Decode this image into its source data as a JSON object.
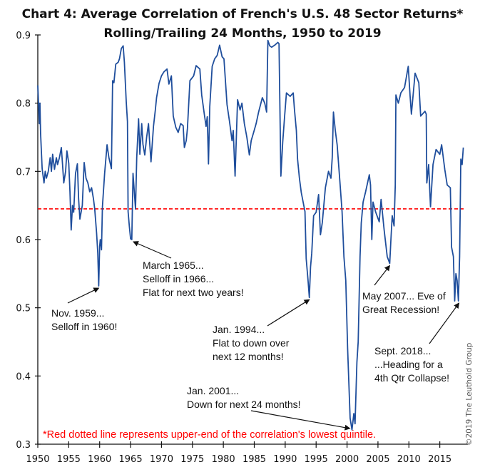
{
  "chart_data": {
    "type": "line",
    "title": "Chart 4: Average Correlation of French's U.S. 48 Sector Returns*",
    "subtitle": "Rolling/Trailing 24 Months, 1950 to 2019",
    "xlim": [
      1950,
      2020
    ],
    "ylim": [
      0.3,
      0.9
    ],
    "x_ticks": [
      "1950",
      "1955",
      "1960",
      "1965",
      "1970",
      "1975",
      "1980",
      "1985",
      "1990",
      "1995",
      "2000",
      "2005",
      "2010",
      "2015"
    ],
    "y_ticks": [
      "0.3",
      "0.4",
      "0.5",
      "0.6",
      "0.7",
      "0.8",
      "0.9"
    ],
    "grid": false,
    "line_color": "#1f4e9c",
    "reference_line": {
      "value": 0.645,
      "color": "#ff0000",
      "style": "dashed"
    },
    "footnote": "*Red dotted line represents upper-end of the correlation's lowest quintile.",
    "copyright": "©2019 The Leuthold Group",
    "series": [
      [
        1950.0,
        0.826
      ],
      [
        1950.1,
        0.803
      ],
      [
        1950.25,
        0.77
      ],
      [
        1950.35,
        0.8
      ],
      [
        1950.45,
        0.756
      ],
      [
        1950.7,
        0.704
      ],
      [
        1951.0,
        0.683
      ],
      [
        1951.2,
        0.7
      ],
      [
        1951.4,
        0.69
      ],
      [
        1951.7,
        0.7
      ],
      [
        1952.0,
        0.72
      ],
      [
        1952.2,
        0.7
      ],
      [
        1952.4,
        0.725
      ],
      [
        1952.7,
        0.703
      ],
      [
        1953.0,
        0.72
      ],
      [
        1953.2,
        0.71
      ],
      [
        1953.5,
        0.72
      ],
      [
        1953.8,
        0.735
      ],
      [
        1954.0,
        0.71
      ],
      [
        1954.2,
        0.683
      ],
      [
        1954.5,
        0.7
      ],
      [
        1954.7,
        0.73
      ],
      [
        1955.0,
        0.712
      ],
      [
        1955.2,
        0.67
      ],
      [
        1955.4,
        0.614
      ],
      [
        1955.6,
        0.65
      ],
      [
        1955.8,
        0.64
      ],
      [
        1956.1,
        0.697
      ],
      [
        1956.4,
        0.711
      ],
      [
        1956.6,
        0.66
      ],
      [
        1956.8,
        0.63
      ],
      [
        1957.0,
        0.64
      ],
      [
        1957.2,
        0.65
      ],
      [
        1957.5,
        0.713
      ],
      [
        1957.8,
        0.69
      ],
      [
        1958.1,
        0.683
      ],
      [
        1958.4,
        0.67
      ],
      [
        1958.7,
        0.676
      ],
      [
        1959.0,
        0.66
      ],
      [
        1959.2,
        0.645
      ],
      [
        1959.5,
        0.61
      ],
      [
        1959.7,
        0.58
      ],
      [
        1959.85,
        0.532
      ],
      [
        1960.0,
        0.59
      ],
      [
        1960.1,
        0.6
      ],
      [
        1960.3,
        0.585
      ],
      [
        1960.45,
        0.648
      ],
      [
        1960.8,
        0.697
      ],
      [
        1961.2,
        0.739
      ],
      [
        1961.5,
        0.72
      ],
      [
        1961.7,
        0.712
      ],
      [
        1961.9,
        0.704
      ],
      [
        1962.1,
        0.833
      ],
      [
        1962.3,
        0.83
      ],
      [
        1962.6,
        0.857
      ],
      [
        1963.0,
        0.86
      ],
      [
        1963.2,
        0.865
      ],
      [
        1963.5,
        0.88
      ],
      [
        1963.8,
        0.884
      ],
      [
        1964.0,
        0.86
      ],
      [
        1964.3,
        0.802
      ],
      [
        1964.5,
        0.773
      ],
      [
        1964.6,
        0.641
      ],
      [
        1964.8,
        0.62
      ],
      [
        1965.0,
        0.601
      ],
      [
        1965.2,
        0.6
      ],
      [
        1965.4,
        0.697
      ],
      [
        1965.6,
        0.67
      ],
      [
        1965.8,
        0.645
      ],
      [
        1966.0,
        0.72
      ],
      [
        1966.3,
        0.777
      ],
      [
        1966.5,
        0.725
      ],
      [
        1966.8,
        0.77
      ],
      [
        1967.0,
        0.74
      ],
      [
        1967.3,
        0.724
      ],
      [
        1967.6,
        0.75
      ],
      [
        1967.9,
        0.77
      ],
      [
        1968.1,
        0.74
      ],
      [
        1968.3,
        0.714
      ],
      [
        1968.7,
        0.766
      ],
      [
        1969.0,
        0.79
      ],
      [
        1969.2,
        0.808
      ],
      [
        1969.6,
        0.829
      ],
      [
        1970.0,
        0.84
      ],
      [
        1970.4,
        0.846
      ],
      [
        1970.9,
        0.85
      ],
      [
        1971.2,
        0.828
      ],
      [
        1971.6,
        0.84
      ],
      [
        1971.9,
        0.781
      ],
      [
        1972.3,
        0.765
      ],
      [
        1972.7,
        0.757
      ],
      [
        1973.1,
        0.77
      ],
      [
        1973.5,
        0.767
      ],
      [
        1973.7,
        0.735
      ],
      [
        1974.0,
        0.745
      ],
      [
        1974.2,
        0.763
      ],
      [
        1974.6,
        0.833
      ],
      [
        1975.2,
        0.84
      ],
      [
        1975.6,
        0.855
      ],
      [
        1976.2,
        0.85
      ],
      [
        1976.5,
        0.812
      ],
      [
        1976.9,
        0.785
      ],
      [
        1977.2,
        0.766
      ],
      [
        1977.4,
        0.78
      ],
      [
        1977.6,
        0.711
      ],
      [
        1977.8,
        0.795
      ],
      [
        1978.2,
        0.854
      ],
      [
        1978.6,
        0.865
      ],
      [
        1979.0,
        0.87
      ],
      [
        1979.4,
        0.885
      ],
      [
        1979.8,
        0.868
      ],
      [
        1980.1,
        0.865
      ],
      [
        1980.6,
        0.798
      ],
      [
        1981.0,
        0.773
      ],
      [
        1981.4,
        0.745
      ],
      [
        1981.6,
        0.76
      ],
      [
        1981.9,
        0.693
      ],
      [
        1982.3,
        0.805
      ],
      [
        1982.7,
        0.79
      ],
      [
        1983.0,
        0.8
      ],
      [
        1983.4,
        0.77
      ],
      [
        1983.8,
        0.75
      ],
      [
        1984.2,
        0.724
      ],
      [
        1984.5,
        0.745
      ],
      [
        1984.9,
        0.757
      ],
      [
        1985.3,
        0.77
      ],
      [
        1985.7,
        0.787
      ],
      [
        1986.3,
        0.808
      ],
      [
        1986.7,
        0.8
      ],
      [
        1987.0,
        0.787
      ],
      [
        1987.2,
        0.892
      ],
      [
        1987.5,
        0.884
      ],
      [
        1987.8,
        0.882
      ],
      [
        1988.3,
        0.885
      ],
      [
        1988.8,
        0.889
      ],
      [
        1989.0,
        0.887
      ],
      [
        1989.3,
        0.693
      ],
      [
        1989.6,
        0.743
      ],
      [
        1989.9,
        0.78
      ],
      [
        1990.2,
        0.815
      ],
      [
        1990.8,
        0.81
      ],
      [
        1991.3,
        0.815
      ],
      [
        1991.5,
        0.79
      ],
      [
        1991.8,
        0.76
      ],
      [
        1992.0,
        0.718
      ],
      [
        1992.3,
        0.69
      ],
      [
        1992.6,
        0.669
      ],
      [
        1993.2,
        0.641
      ],
      [
        1993.4,
        0.572
      ],
      [
        1993.7,
        0.54
      ],
      [
        1993.9,
        0.515
      ],
      [
        1994.1,
        0.56
      ],
      [
        1994.3,
        0.58
      ],
      [
        1994.6,
        0.635
      ],
      [
        1995.0,
        0.64
      ],
      [
        1995.4,
        0.666
      ],
      [
        1995.7,
        0.607
      ],
      [
        1996.0,
        0.625
      ],
      [
        1996.5,
        0.676
      ],
      [
        1997.0,
        0.7
      ],
      [
        1997.4,
        0.69
      ],
      [
        1997.6,
        0.72
      ],
      [
        1997.8,
        0.787
      ],
      [
        1998.1,
        0.76
      ],
      [
        1998.4,
        0.739
      ],
      [
        1998.8,
        0.69
      ],
      [
        1999.2,
        0.641
      ],
      [
        1999.5,
        0.575
      ],
      [
        1999.8,
        0.54
      ],
      [
        2000.1,
        0.44
      ],
      [
        2000.5,
        0.338
      ],
      [
        2000.8,
        0.321
      ],
      [
        2001.1,
        0.345
      ],
      [
        2001.3,
        0.33
      ],
      [
        2001.6,
        0.42
      ],
      [
        2001.8,
        0.45
      ],
      [
        2002.1,
        0.575
      ],
      [
        2002.3,
        0.624
      ],
      [
        2002.6,
        0.655
      ],
      [
        2003.0,
        0.67
      ],
      [
        2003.6,
        0.695
      ],
      [
        2003.8,
        0.68
      ],
      [
        2004.0,
        0.6
      ],
      [
        2004.2,
        0.655
      ],
      [
        2004.6,
        0.641
      ],
      [
        2005.2,
        0.626
      ],
      [
        2005.5,
        0.659
      ],
      [
        2006.0,
        0.614
      ],
      [
        2006.5,
        0.575
      ],
      [
        2006.9,
        0.565
      ],
      [
        2007.1,
        0.6
      ],
      [
        2007.3,
        0.635
      ],
      [
        2007.6,
        0.62
      ],
      [
        2007.8,
        0.68
      ],
      [
        2007.9,
        0.812
      ],
      [
        2008.3,
        0.8
      ],
      [
        2008.7,
        0.815
      ],
      [
        2009.3,
        0.823
      ],
      [
        2009.9,
        0.854
      ],
      [
        2010.2,
        0.81
      ],
      [
        2010.4,
        0.784
      ],
      [
        2011.0,
        0.844
      ],
      [
        2011.6,
        0.83
      ],
      [
        2011.9,
        0.781
      ],
      [
        2012.6,
        0.788
      ],
      [
        2012.8,
        0.784
      ],
      [
        2012.9,
        0.683
      ],
      [
        2013.2,
        0.71
      ],
      [
        2013.5,
        0.648
      ],
      [
        2013.9,
        0.71
      ],
      [
        2014.4,
        0.732
      ],
      [
        2015.0,
        0.725
      ],
      [
        2015.3,
        0.739
      ],
      [
        2015.8,
        0.703
      ],
      [
        2016.2,
        0.68
      ],
      [
        2016.7,
        0.676
      ],
      [
        2016.9,
        0.589
      ],
      [
        2017.2,
        0.575
      ],
      [
        2017.4,
        0.51
      ],
      [
        2017.6,
        0.55
      ],
      [
        2017.8,
        0.54
      ],
      [
        2018.0,
        0.51
      ],
      [
        2018.2,
        0.575
      ],
      [
        2018.4,
        0.718
      ],
      [
        2018.6,
        0.71
      ],
      [
        2018.8,
        0.735
      ]
    ],
    "annotations": [
      {
        "lines": [
          "Nov. 1959...",
          "Selloff in 1960!"
        ],
        "point": [
          1959.85,
          0.532
        ]
      },
      {
        "lines": [
          "March 1965...",
          "Selloff in 1966...",
          "Flat for next two years!"
        ],
        "point": [
          1965.1,
          0.6
        ]
      },
      {
        "lines": [
          "Jan. 1994...",
          "Flat to down over",
          "next 12 months!"
        ],
        "point": [
          1993.9,
          0.515
        ]
      },
      {
        "lines": [
          "Jan. 2001...",
          "Down for next 24 months!"
        ],
        "point": [
          2000.8,
          0.321
        ]
      },
      {
        "lines": [
          "May 2007... Eve of",
          "Great Recession!"
        ],
        "point": [
          2006.9,
          0.565
        ]
      },
      {
        "lines": [
          "Sept. 2018...",
          "...Heading for a",
          "4th Qtr Collapse!"
        ],
        "point": [
          2018.1,
          0.51
        ]
      }
    ]
  }
}
